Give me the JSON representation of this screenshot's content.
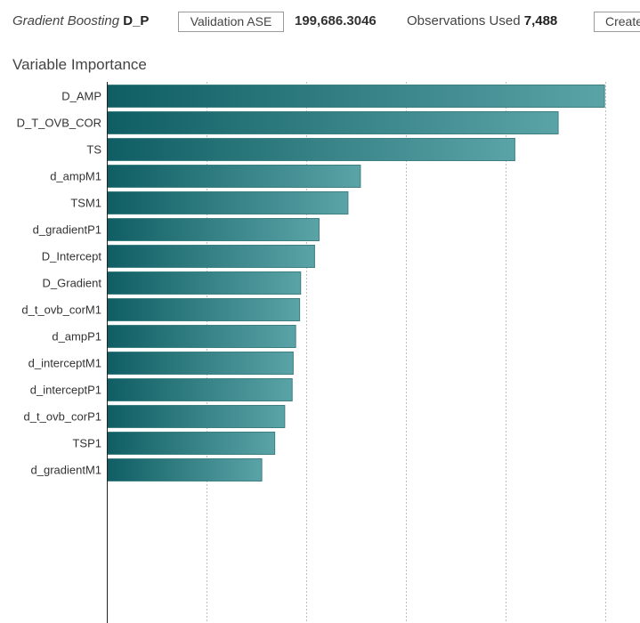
{
  "header": {
    "model_type": "Gradient Boosting",
    "model_name": "D_P",
    "stat_button": "Validation ASE",
    "stat_value": "199,686.3046",
    "obs_label": "Observations Used",
    "obs_value": "7,488",
    "create_button": "Create"
  },
  "section_title": "Variable Importance",
  "colors": {
    "bar_dark": "#0f5e63",
    "bar_light": "#5aa3a7",
    "bar_border": "#3d7f83",
    "gridline": "#bdbdbd",
    "axis": "#222222"
  },
  "chart_data": {
    "type": "bar",
    "orientation": "horizontal",
    "title": "Variable Importance",
    "categories": [
      "D_AMP",
      "D_T_OVB_COR",
      "TS",
      "d_ampM1",
      "TSM1",
      "d_gradientP1",
      "D_Intercept",
      "D_Gradient",
      "d_t_ovb_corM1",
      "d_ampP1",
      "d_interceptM1",
      "d_interceptP1",
      "d_t_ovb_corP1",
      "TSP1",
      "d_gradientM1"
    ],
    "values": [
      1.0,
      0.907,
      0.82,
      0.51,
      0.485,
      0.427,
      0.418,
      0.39,
      0.388,
      0.38,
      0.375,
      0.373,
      0.358,
      0.338,
      0.312
    ],
    "xlim": [
      0,
      1.04
    ],
    "gridlines": [
      0.2,
      0.4,
      0.6,
      0.8,
      1.0
    ],
    "xlabel": "",
    "ylabel": ""
  }
}
